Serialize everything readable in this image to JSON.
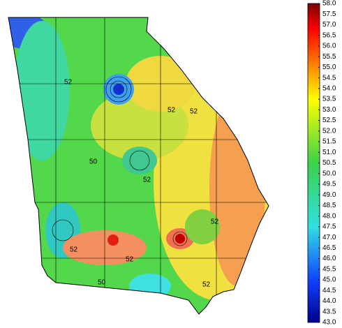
{
  "map": {
    "region": "Georgia",
    "contour_labels": [
      "52",
      "50",
      "52",
      "52",
      "52",
      "50",
      "52",
      "52",
      "52",
      "52"
    ],
    "colorbar": {
      "range": [
        43,
        58
      ],
      "ticks": [
        {
          "value": 58,
          "label": "58.0"
        },
        {
          "value": 57.5,
          "label": "57.5"
        },
        {
          "value": 57,
          "label": "57.0"
        },
        {
          "value": 56.5,
          "label": "56.5"
        },
        {
          "value": 56,
          "label": "56.0"
        },
        {
          "value": 55.5,
          "label": "55.5"
        },
        {
          "value": 55,
          "label": "55.0"
        },
        {
          "value": 54.5,
          "label": "54.5"
        },
        {
          "value": 54,
          "label": "54.0"
        },
        {
          "value": 53.5,
          "label": "53.5"
        },
        {
          "value": 53,
          "label": "53.0"
        },
        {
          "value": 52.5,
          "label": "52.5"
        },
        {
          "value": 52,
          "label": "52.0"
        },
        {
          "value": 51.5,
          "label": "51.5"
        },
        {
          "value": 51,
          "label": "51.0"
        },
        {
          "value": 50.5,
          "label": "50.5"
        },
        {
          "value": 50,
          "label": "50.0"
        },
        {
          "value": 49.5,
          "label": "49.5"
        },
        {
          "value": 49,
          "label": "49.0"
        },
        {
          "value": 48.5,
          "label": "48.5"
        },
        {
          "value": 48,
          "label": "48.0"
        },
        {
          "value": 47.5,
          "label": "47.5"
        },
        {
          "value": 47,
          "label": "47.0"
        },
        {
          "value": 46.5,
          "label": "46.5"
        },
        {
          "value": 46,
          "label": "46.0"
        },
        {
          "value": 45.5,
          "label": "45.5"
        },
        {
          "value": 45,
          "label": "45.0"
        },
        {
          "value": 44.5,
          "label": "44.5"
        },
        {
          "value": 44,
          "label": "44.0"
        },
        {
          "value": 43.5,
          "label": "43.5"
        },
        {
          "value": 43,
          "label": "43.0"
        }
      ]
    }
  }
}
